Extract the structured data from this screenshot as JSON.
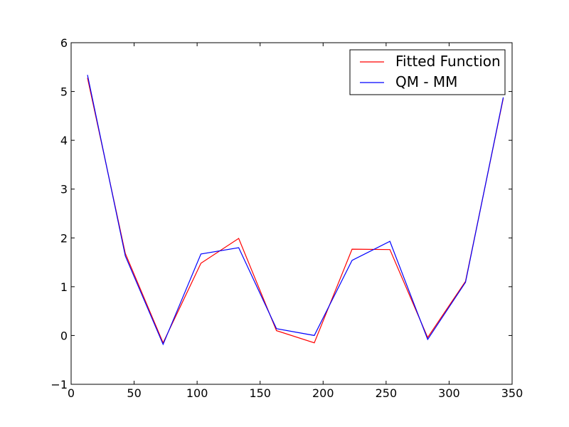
{
  "chart_data": {
    "type": "line",
    "title": "",
    "xlabel": "",
    "ylabel": "",
    "xlim": [
      0,
      350
    ],
    "ylim": [
      -1,
      6
    ],
    "xticks": [
      0,
      50,
      100,
      150,
      200,
      250,
      300,
      350
    ],
    "yticks": [
      -1,
      0,
      1,
      2,
      3,
      4,
      5,
      6
    ],
    "xtick_labels": [
      "0",
      "50",
      "100",
      "150",
      "200",
      "250",
      "300",
      "350"
    ],
    "ytick_labels": [
      "−1",
      "0",
      "1",
      "2",
      "3",
      "4",
      "5",
      "6"
    ],
    "grid": false,
    "legend_position": "top-right",
    "x": [
      13,
      43,
      73,
      103,
      133,
      163,
      193,
      223,
      253,
      283,
      313,
      343
    ],
    "series": [
      {
        "name": "Fitted Function",
        "color": "#ff0000",
        "values": [
          5.28,
          1.68,
          -0.15,
          1.48,
          1.99,
          0.1,
          -0.15,
          1.77,
          1.76,
          -0.04,
          1.11,
          4.86
        ]
      },
      {
        "name": "QM - MM",
        "color": "#0000ff",
        "values": [
          5.34,
          1.63,
          -0.18,
          1.67,
          1.8,
          0.14,
          0.0,
          1.54,
          1.93,
          -0.08,
          1.09,
          4.88
        ]
      }
    ]
  }
}
